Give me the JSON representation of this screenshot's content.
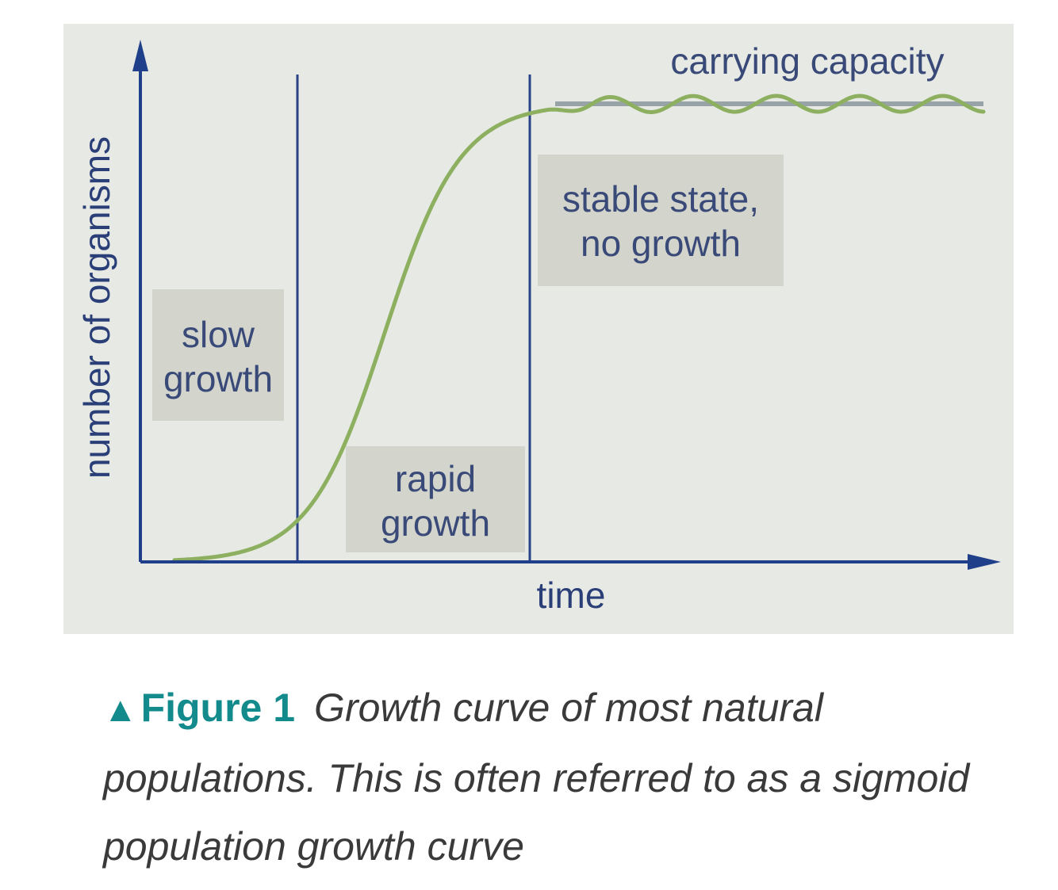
{
  "chart_data": {
    "type": "line",
    "title": "",
    "xlabel": "time",
    "ylabel": "number of organisms",
    "annotation": "carrying capacity",
    "phases": [
      {
        "label_lines": [
          "slow",
          "growth"
        ]
      },
      {
        "label_lines": [
          "rapid",
          "growth"
        ]
      },
      {
        "label_lines": [
          "stable state,",
          "no growth"
        ]
      }
    ],
    "series": [
      {
        "shape": "sigmoid with oscillation around carrying capacity"
      }
    ],
    "grid": false,
    "colors": {
      "curve": "#8db060",
      "axes": "#1f3f8a",
      "dividers": "#2a4288",
      "capacity_line": "#98a3a8",
      "label_box": "#d3d5cd",
      "background": "#e7e9e4"
    }
  },
  "caption": {
    "marker_icon": "triangle-up-icon",
    "marker_glyph": "▲",
    "label": "Figure 1",
    "text": "Growth curve of most natural populations. This is often referred to as a sigmoid population growth curve"
  }
}
